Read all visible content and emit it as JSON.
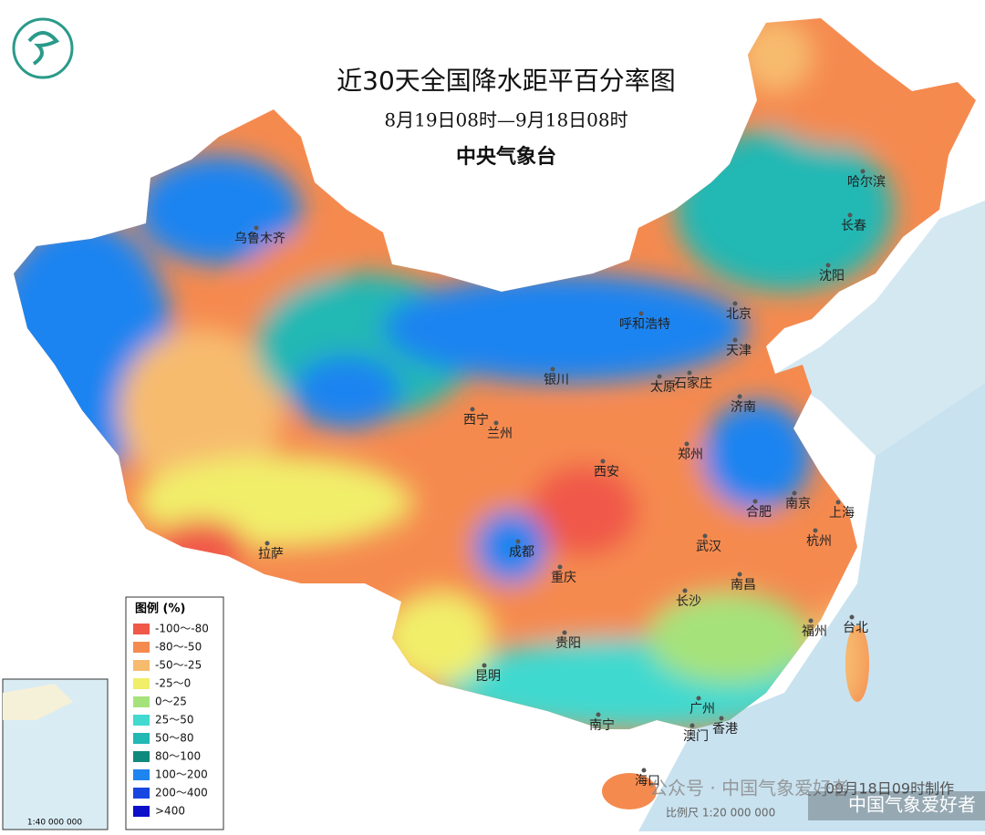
{
  "header": {
    "title": "近30天全国降水距平百分率图",
    "subtitle": "8月19日08时—9月18日08时",
    "issuer": "中央气象台"
  },
  "legend": {
    "title": "图例 (%)",
    "items": [
      {
        "label": "-100～-80",
        "color": "#f0584a"
      },
      {
        "label": "-80～-50",
        "color": "#f58a4f"
      },
      {
        "label": "-50～-25",
        "color": "#f7bb6e"
      },
      {
        "label": "-25～0",
        "color": "#f1ee6a"
      },
      {
        "label": "0～25",
        "color": "#a6e27a"
      },
      {
        "label": "25～50",
        "color": "#41d9d0"
      },
      {
        "label": "50～80",
        "color": "#22b8b4"
      },
      {
        "label": "80～100",
        "color": "#108a7c"
      },
      {
        "label": "100～200",
        "color": "#1e84f0"
      },
      {
        "label": "200～400",
        "color": "#1846e0"
      },
      {
        "label": ">400",
        "color": "#0c10c8"
      }
    ]
  },
  "cities": [
    "乌鲁木齐",
    "哈尔滨",
    "长春",
    "沈阳",
    "呼和浩特",
    "北京",
    "天津",
    "银川",
    "石家庄",
    "太原",
    "济南",
    "西宁",
    "兰州",
    "郑州",
    "西安",
    "合肥",
    "南京",
    "上海",
    "杭州",
    "拉萨",
    "成都",
    "武汉",
    "重庆",
    "南昌",
    "长沙",
    "福州",
    "台北",
    "贵阳",
    "昆明",
    "广州",
    "南宁",
    "澳门",
    "香港",
    "海口"
  ],
  "inset": {
    "scale": "1:40 000 000"
  },
  "footer": {
    "scale": "比例尺 1:20 000 000",
    "date": "09月18日09时制作",
    "watermark": "公众号 · 中国气象爱好者",
    "corner": "中国气象爱好者"
  }
}
